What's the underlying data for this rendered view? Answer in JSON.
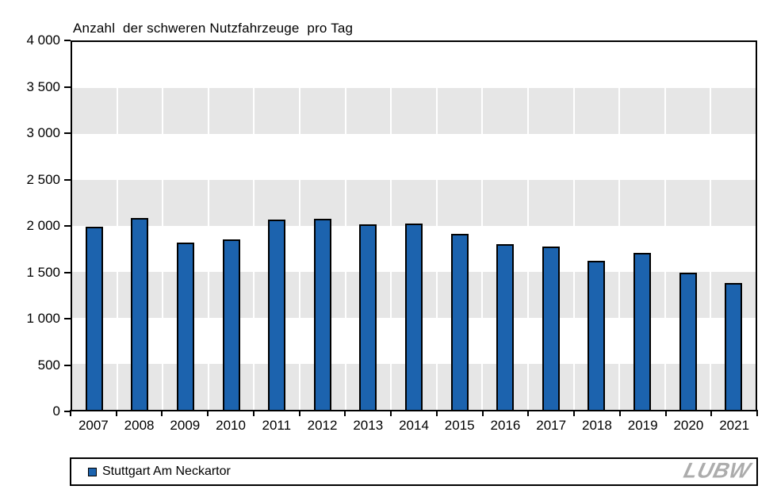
{
  "title": {
    "text": "Anzahl  der schweren Nutzfahrzeuge  pro Tag"
  },
  "chart_data": {
    "type": "bar",
    "title": "Anzahl  der schweren Nutzfahrzeuge  pro Tag",
    "categories": [
      "2007",
      "2008",
      "2009",
      "2010",
      "2011",
      "2012",
      "2013",
      "2014",
      "2015",
      "2016",
      "2017",
      "2018",
      "2019",
      "2020",
      "2021"
    ],
    "series": [
      {
        "name": "Stuttgart Am Neckartor",
        "color": "#1c63ae",
        "values": [
          1990,
          2090,
          1820,
          1850,
          2070,
          2080,
          2020,
          2030,
          1910,
          1800,
          1780,
          1620,
          1710,
          1490,
          1380
        ]
      }
    ],
    "xlabel": "",
    "ylabel": "",
    "ylim": [
      0,
      4000
    ],
    "ytick_step": 500,
    "ytick_labels_top_to_bottom": [
      "4 000",
      "3 500",
      "3 000",
      "2 500",
      "2 000",
      "1 500",
      "1 000",
      "500",
      "0"
    ],
    "grid": "alternating-horizontal-bands",
    "band_colors": [
      "#ffffff",
      "#e6e6e6"
    ],
    "legend_position": "bottom"
  },
  "legend": {
    "items": [
      {
        "label": "Stuttgart Am Neckartor",
        "marker_color": "#1c63ae"
      }
    ]
  },
  "branding": {
    "logo_text": "LUBW",
    "logo_color": "#acacac"
  }
}
